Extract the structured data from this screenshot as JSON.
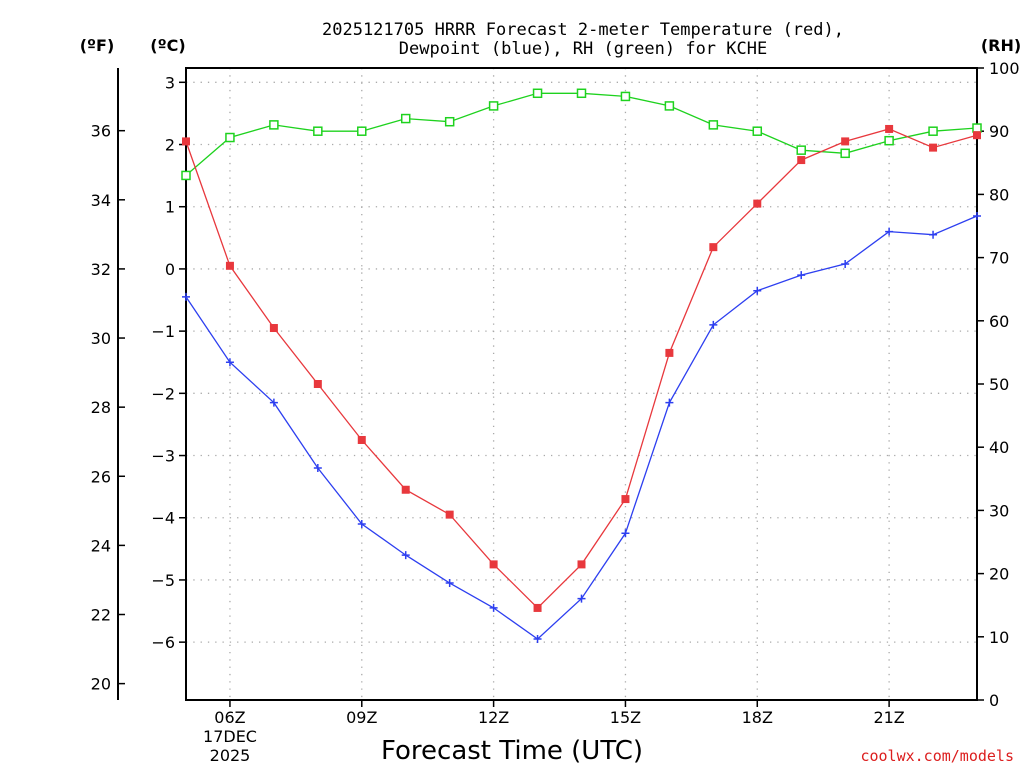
{
  "header": {
    "title_line1": "2025121705 HRRR Forecast 2-meter Temperature (red),",
    "title_line2": "Dewpoint (blue), RH (green) for KCHE"
  },
  "units": {
    "fahrenheit": "(ºF)",
    "celsius": "(ºC)",
    "rh": "(RH)"
  },
  "footer": {
    "x_label": "Forecast Time (UTC)",
    "credit": "coolwx.com/models",
    "date_line1": "17DEC",
    "date_line2": "2025"
  },
  "colors": {
    "temperature": "#e8383d",
    "dewpoint": "#2d3ff0",
    "rh": "#1ed21e",
    "grid": "#aaaaaa"
  },
  "chart_data": {
    "type": "line",
    "title": "2025121705 HRRR Forecast 2-meter Temperature (red), Dewpoint (blue), RH (green) for KCHE",
    "xlabel": "Forecast Time (UTC)",
    "x_hours_utc": [
      5,
      6,
      7,
      8,
      9,
      10,
      11,
      12,
      13,
      14,
      15,
      16,
      17,
      18,
      19,
      20,
      21,
      22,
      23
    ],
    "xlim": [
      5,
      23
    ],
    "x_ticks": [
      {
        "hour": 6,
        "label": "06Z"
      },
      {
        "hour": 9,
        "label": "09Z"
      },
      {
        "hour": 12,
        "label": "12Z"
      },
      {
        "hour": 15,
        "label": "15Z"
      },
      {
        "hour": 18,
        "label": "18Z"
      },
      {
        "hour": 21,
        "label": "21Z"
      }
    ],
    "left_axis_celsius": {
      "range": [
        -6.93,
        3.23
      ],
      "ticks": [
        3,
        2,
        1,
        0,
        -1,
        -2,
        -3,
        -4,
        -5,
        -6
      ]
    },
    "outer_axis_fahrenheit": {
      "ticks": [
        36,
        34,
        32,
        30,
        28,
        26,
        24,
        22,
        20
      ]
    },
    "right_axis_rh": {
      "range": [
        0,
        100
      ],
      "ticks": [
        0,
        10,
        20,
        30,
        40,
        50,
        60,
        70,
        80,
        90,
        100
      ]
    },
    "grid": true,
    "series": [
      {
        "name": "2-meter Temperature",
        "units": "C",
        "color": "red",
        "marker": "filled-square",
        "values": [
          2.05,
          0.05,
          -0.95,
          -1.85,
          -2.75,
          -3.55,
          -3.95,
          -4.75,
          -5.45,
          -4.75,
          -3.7,
          -1.35,
          0.35,
          1.05,
          1.75,
          2.05,
          2.25,
          1.95,
          2.15
        ]
      },
      {
        "name": "Dewpoint",
        "units": "C",
        "color": "blue",
        "marker": "plus",
        "values": [
          -0.45,
          -1.5,
          -2.15,
          -3.2,
          -4.1,
          -4.6,
          -5.05,
          -5.45,
          -5.95,
          -5.3,
          -4.25,
          -2.15,
          -0.9,
          -0.35,
          -0.1,
          0.08,
          0.6,
          0.55,
          0.85
        ]
      },
      {
        "name": "Relative Humidity",
        "units": "%",
        "color": "green",
        "marker": "open-square",
        "values": [
          83,
          89,
          91,
          90,
          90,
          92,
          91.5,
          94,
          96,
          96,
          95.5,
          94,
          91,
          90,
          87,
          86.5,
          88.5,
          90,
          90.5
        ]
      }
    ]
  }
}
